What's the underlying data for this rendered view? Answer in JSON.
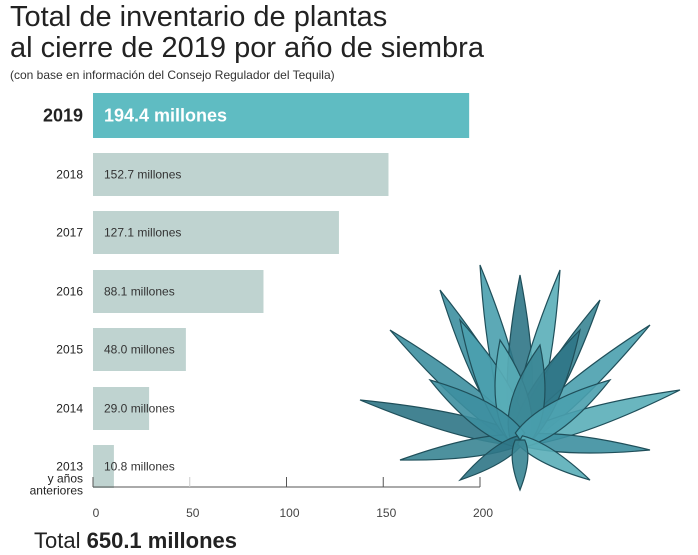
{
  "title_line1": "Total de inventario de plantas",
  "title_line2": "al cierre de 2019 por año de siembra",
  "subtitle": "(con base en información del Consejo Regulador del Tequila)",
  "total_label": "Total",
  "total_value": "650.1 millones",
  "colors": {
    "highlight": "#5fbcc2",
    "bar": "#bfd3d0",
    "axis": "#555555",
    "plant": "#3f8f9e"
  },
  "chart_data": {
    "type": "bar",
    "orientation": "horizontal",
    "title": "Total de inventario de plantas al cierre de 2019 por año de siembra",
    "categories": [
      "2019",
      "2018",
      "2017",
      "2016",
      "2015",
      "2014",
      "2013 y años anteriores"
    ],
    "category_lines": [
      [
        "2019"
      ],
      [
        "2018"
      ],
      [
        "2017"
      ],
      [
        "2016"
      ],
      [
        "2015"
      ],
      [
        "2014"
      ],
      [
        "2013",
        "y años",
        "anteriores"
      ]
    ],
    "values": [
      194.4,
      152.7,
      127.1,
      88.1,
      48.0,
      29.0,
      10.8
    ],
    "data_labels": [
      "194.4 millones",
      "152.7 millones",
      "127.1 millones",
      "88.1 millones",
      "48.0 millones",
      "29.0 millones",
      "10.8 millones"
    ],
    "highlight_index": 0,
    "xlim": [
      0,
      200
    ],
    "xticks": [
      0,
      50,
      100,
      150,
      200
    ],
    "xlabel": "",
    "ylabel": "",
    "unit": "millones"
  }
}
